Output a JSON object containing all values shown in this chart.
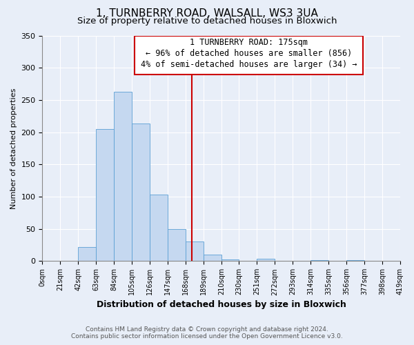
{
  "title": "1, TURNBERRY ROAD, WALSALL, WS3 3UA",
  "subtitle": "Size of property relative to detached houses in Bloxwich",
  "xlabel": "Distribution of detached houses by size in Bloxwich",
  "ylabel": "Number of detached properties",
  "bar_edges": [
    0,
    21,
    42,
    63,
    84,
    105,
    126,
    147,
    168,
    189,
    210,
    230,
    251,
    272,
    293,
    314,
    335,
    356,
    377,
    398,
    419
  ],
  "bar_heights": [
    0,
    0,
    22,
    205,
    263,
    213,
    103,
    50,
    30,
    10,
    3,
    0,
    4,
    0,
    0,
    1,
    0,
    1,
    0,
    0
  ],
  "bar_color": "#c5d8f0",
  "bar_edgecolor": "#5a9fd4",
  "vline_x": 175,
  "vline_color": "#cc0000",
  "annotation_line1": "1 TURNBERRY ROAD: 175sqm",
  "annotation_line2": "← 96% of detached houses are smaller (856)",
  "annotation_line3": "4% of semi-detached houses are larger (34) →",
  "xlim": [
    0,
    419
  ],
  "ylim": [
    0,
    350
  ],
  "yticks": [
    0,
    50,
    100,
    150,
    200,
    250,
    300,
    350
  ],
  "xtick_labels": [
    "0sqm",
    "21sqm",
    "42sqm",
    "63sqm",
    "84sqm",
    "105sqm",
    "126sqm",
    "147sqm",
    "168sqm",
    "189sqm",
    "210sqm",
    "230sqm",
    "251sqm",
    "272sqm",
    "293sqm",
    "314sqm",
    "335sqm",
    "356sqm",
    "377sqm",
    "398sqm",
    "419sqm"
  ],
  "xtick_positions": [
    0,
    21,
    42,
    63,
    84,
    105,
    126,
    147,
    168,
    189,
    210,
    230,
    251,
    272,
    293,
    314,
    335,
    356,
    377,
    398,
    419
  ],
  "footer_line1": "Contains HM Land Registry data © Crown copyright and database right 2024.",
  "footer_line2": "Contains public sector information licensed under the Open Government Licence v3.0.",
  "bg_color": "#e8eef8",
  "grid_color": "#ffffff",
  "title_fontsize": 11,
  "subtitle_fontsize": 9.5,
  "annotation_fontsize": 8.5,
  "tick_fontsize": 7,
  "ylabel_fontsize": 8,
  "xlabel_fontsize": 9,
  "footer_fontsize": 6.5
}
